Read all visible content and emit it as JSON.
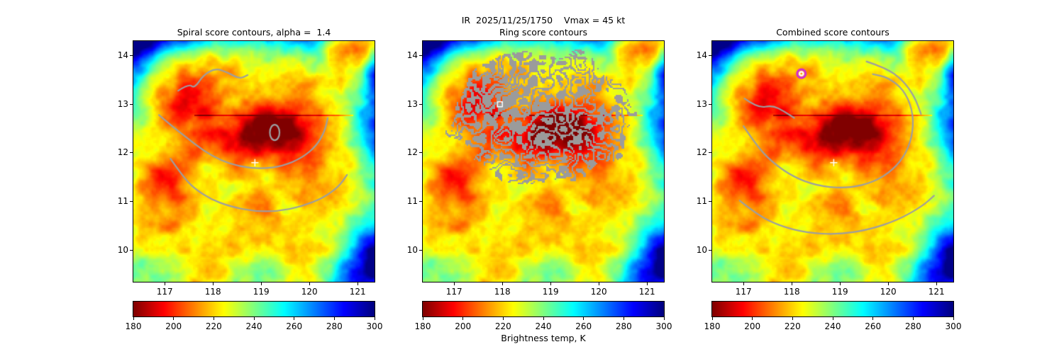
{
  "figure": {
    "suptitle": "IR  2025/11/25/1750    Vmax = 45 kt",
    "background_color": "#ffffff"
  },
  "chart_data": {
    "type": "heatmap",
    "description": "Infrared brightness temperature imagery of a tropical cyclone shown in three panels with spiral-score, ring-score and combined-score contour overlays",
    "x_axis": {
      "ticks": [
        117,
        118,
        119,
        120,
        121
      ],
      "range": [
        116.35,
        121.35
      ]
    },
    "y_axis": {
      "ticks": [
        10,
        11,
        12,
        13,
        14
      ],
      "range": [
        9.35,
        14.3
      ]
    },
    "colorbar": {
      "label": "Brightness temp, K",
      "ticks": [
        180,
        200,
        220,
        240,
        260,
        280,
        300
      ],
      "range": [
        180,
        300
      ],
      "colormap": "jet_r"
    },
    "contour_color": "#9c9ea1",
    "panels": [
      {
        "title": "Spiral score contours, alpha =  1.4",
        "contours": [
          [
            [
              117.28,
              13.28
            ],
            [
              117.5,
              13.42
            ],
            [
              117.62,
              13.33
            ],
            [
              117.8,
              13.6
            ],
            [
              118.05,
              13.74
            ],
            [
              118.3,
              13.66
            ],
            [
              118.55,
              13.52
            ],
            [
              118.72,
              13.6
            ]
          ],
          [
            [
              116.88,
              12.78
            ],
            [
              117.15,
              12.55
            ],
            [
              117.45,
              12.32
            ],
            [
              117.8,
              12.05
            ],
            [
              118.15,
              11.85
            ],
            [
              118.55,
              11.72
            ],
            [
              119.0,
              11.67
            ],
            [
              119.45,
              11.73
            ],
            [
              119.85,
              11.9
            ],
            [
              120.15,
              12.15
            ],
            [
              120.32,
              12.45
            ],
            [
              120.38,
              12.72
            ]
          ],
          [
            [
              117.12,
              11.88
            ],
            [
              117.35,
              11.55
            ],
            [
              117.6,
              11.28
            ],
            [
              117.95,
              11.05
            ],
            [
              118.35,
              10.9
            ],
            [
              118.85,
              10.8
            ],
            [
              119.35,
              10.8
            ],
            [
              119.85,
              10.9
            ],
            [
              120.3,
              11.08
            ],
            [
              120.62,
              11.32
            ],
            [
              120.78,
              11.55
            ]
          ]
        ],
        "loop": [
          119.28,
          12.42,
          0.1,
          0.16
        ],
        "markers": [
          {
            "type": "plus",
            "lon": 118.87,
            "lat": 11.8,
            "color": "#ffffff"
          }
        ]
      },
      {
        "title": "Ring score contours",
        "ring_region": {
          "center": [
            118.85,
            12.7
          ],
          "rx": 1.85,
          "ry": 1.42,
          "color": "#9b9b9b"
        },
        "markers": [
          {
            "type": "square",
            "lon": 117.95,
            "lat": 13.0,
            "color": "#ffffff"
          }
        ]
      },
      {
        "title": "Combined score contours",
        "contours": [
          [
            [
              117.02,
              13.12
            ],
            [
              117.3,
              12.92
            ],
            [
              117.6,
              12.98
            ],
            [
              117.85,
              12.85
            ],
            [
              118.05,
              12.72
            ]
          ],
          [
            [
              117.0,
              12.55
            ],
            [
              117.3,
              12.1
            ],
            [
              117.7,
              11.72
            ],
            [
              118.15,
              11.45
            ],
            [
              118.65,
              11.3
            ],
            [
              119.2,
              11.28
            ],
            [
              119.7,
              11.4
            ],
            [
              120.1,
              11.65
            ],
            [
              120.38,
              12.0
            ],
            [
              120.52,
              12.45
            ],
            [
              120.5,
              12.9
            ],
            [
              120.32,
              13.3
            ],
            [
              120.0,
              13.55
            ],
            [
              119.68,
              13.62
            ]
          ],
          [
            [
              119.55,
              13.88
            ],
            [
              119.95,
              13.75
            ],
            [
              120.3,
              13.5
            ],
            [
              120.55,
              13.15
            ],
            [
              120.68,
              12.8
            ]
          ],
          [
            [
              116.92,
              11.02
            ],
            [
              117.3,
              10.72
            ],
            [
              117.75,
              10.5
            ],
            [
              118.3,
              10.36
            ],
            [
              118.95,
              10.32
            ],
            [
              119.6,
              10.42
            ],
            [
              120.2,
              10.62
            ],
            [
              120.7,
              10.9
            ],
            [
              120.95,
              11.12
            ]
          ]
        ],
        "markers": [
          {
            "type": "plus",
            "lon": 118.87,
            "lat": 11.8,
            "color": "#ffffff"
          },
          {
            "type": "target",
            "lon": 118.2,
            "lat": 13.63,
            "outer_color": "#cf2bd6",
            "inner_color": "#ffffff"
          }
        ]
      }
    ],
    "field": {
      "units": "K",
      "base": 238,
      "core_cool": 26,
      "core_center": [
        118.9,
        11.9
      ],
      "core_sigma": [
        2.4,
        2.2
      ],
      "broad_noise": 55,
      "fine_noise": 18,
      "cold_spots": [
        [
          119.4,
          12.45,
          0.8,
          0.65,
          33
        ],
        [
          118.6,
          12.1,
          0.5,
          0.45,
          18
        ],
        [
          117.55,
          13.2,
          0.45,
          0.5,
          26
        ],
        [
          117.2,
          12.75,
          0.3,
          0.3,
          16
        ],
        [
          116.95,
          11.45,
          0.6,
          0.5,
          30
        ],
        [
          117.5,
          11.95,
          0.35,
          0.3,
          14
        ],
        [
          121.1,
          14.15,
          0.55,
          0.4,
          22
        ],
        [
          119.9,
          13.4,
          0.45,
          0.35,
          12
        ]
      ],
      "warm_spots": [
        [
          116.45,
          14.35,
          0.6,
          0.55,
          75
        ],
        [
          117.5,
          14.45,
          0.55,
          0.35,
          50
        ],
        [
          121.55,
          12.3,
          0.45,
          1.2,
          55
        ],
        [
          121.5,
          9.9,
          0.55,
          0.65,
          65
        ],
        [
          120.9,
          9.45,
          0.7,
          0.4,
          40
        ],
        [
          118.85,
          14.55,
          0.9,
          0.4,
          38
        ],
        [
          116.3,
          13.25,
          0.35,
          0.6,
          32
        ],
        [
          119.95,
          14.5,
          0.55,
          0.35,
          30
        ],
        [
          121.45,
          13.6,
          0.4,
          0.5,
          40
        ]
      ]
    }
  }
}
